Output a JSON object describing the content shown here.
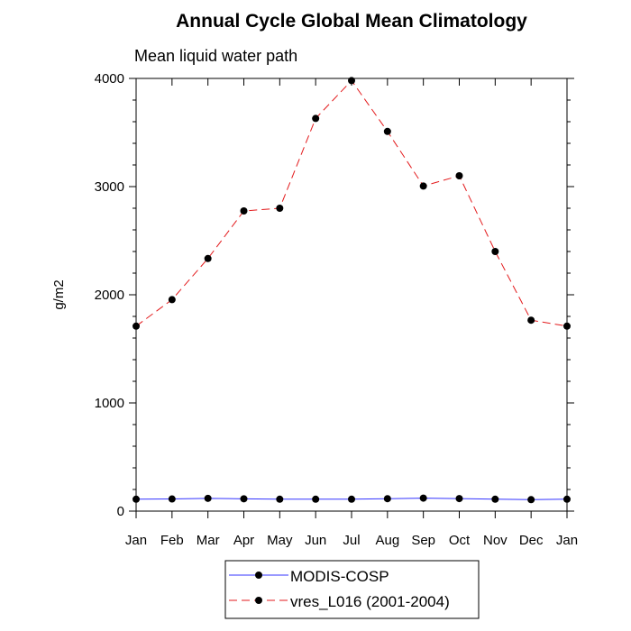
{
  "chart_data": {
    "type": "line",
    "title": "Annual Cycle Global Mean Climatology",
    "subtitle": "Mean liquid water path",
    "xlabel": "",
    "ylabel": "g/m2",
    "categories": [
      "Jan",
      "Feb",
      "Mar",
      "Apr",
      "May",
      "Jun",
      "Jul",
      "Aug",
      "Sep",
      "Oct",
      "Nov",
      "Dec",
      "Jan"
    ],
    "ylim": [
      0,
      4000
    ],
    "yticks": [
      0,
      1000,
      2000,
      3000,
      4000
    ],
    "yticks_labels": [
      "0",
      "1000",
      "2000",
      "3000",
      "4000"
    ],
    "series": [
      {
        "name": "MODIS-COSP",
        "color": "#3333ff",
        "line_style": "solid",
        "marker": "filled-circle",
        "values": [
          110,
          112,
          118,
          114,
          110,
          110,
          110,
          115,
          120,
          116,
          110,
          106,
          110
        ]
      },
      {
        "name": "vres_L016 (2001-2004)",
        "color": "#e31a1c",
        "line_style": "dashed",
        "marker": "filled-circle",
        "values": [
          1710,
          1955,
          2335,
          2775,
          2800,
          3630,
          3980,
          3510,
          3005,
          3100,
          2400,
          1765,
          1710
        ]
      }
    ],
    "legend": {
      "placement": "bottom-center",
      "entries": [
        "MODIS-COSP",
        "vres_L016 (2001-2004)"
      ]
    }
  }
}
